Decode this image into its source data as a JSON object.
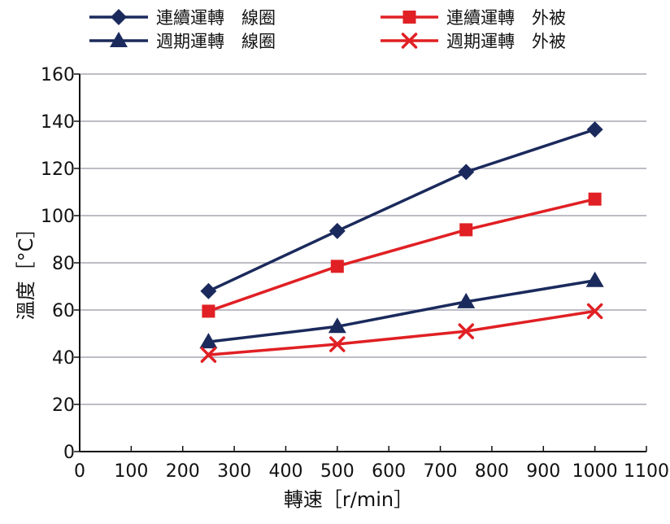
{
  "colors": {
    "navy": "#1b2a5c",
    "red": "#e02024",
    "grid": "#a7a7b4",
    "axis": "#111111"
  },
  "chart_data": {
    "type": "line",
    "title": "",
    "xlabel": "轉速［r/min］",
    "ylabel": "溫度［°C］",
    "xlim": [
      0,
      1100
    ],
    "ylim": [
      0,
      160
    ],
    "x_ticks": [
      0,
      100,
      200,
      300,
      400,
      500,
      600,
      700,
      800,
      900,
      1000,
      1100
    ],
    "y_ticks": [
      0,
      20,
      40,
      60,
      80,
      100,
      120,
      140,
      160
    ],
    "grid": "horizontal",
    "legend_position": "top",
    "series": [
      {
        "name": "連續運轉　線圈",
        "color": "#1b2a5c",
        "marker": "diamond",
        "x": [
          250,
          500,
          750,
          1000
        ],
        "values": [
          68,
          93.5,
          118.5,
          136.5
        ]
      },
      {
        "name": "週期運轉　線圈",
        "color": "#1b2a5c",
        "marker": "triangle",
        "x": [
          250,
          500,
          750,
          1000
        ],
        "values": [
          46.5,
          53,
          63.5,
          72.5
        ]
      },
      {
        "name": "連續運轉　外被",
        "color": "#e02024",
        "marker": "square",
        "x": [
          250,
          500,
          750,
          1000
        ],
        "values": [
          59.5,
          78.5,
          94,
          107
        ]
      },
      {
        "name": "週期運轉　外被",
        "color": "#e02024",
        "marker": "x",
        "x": [
          250,
          500,
          750,
          1000
        ],
        "values": [
          41,
          45.5,
          51,
          59.5
        ]
      }
    ]
  }
}
